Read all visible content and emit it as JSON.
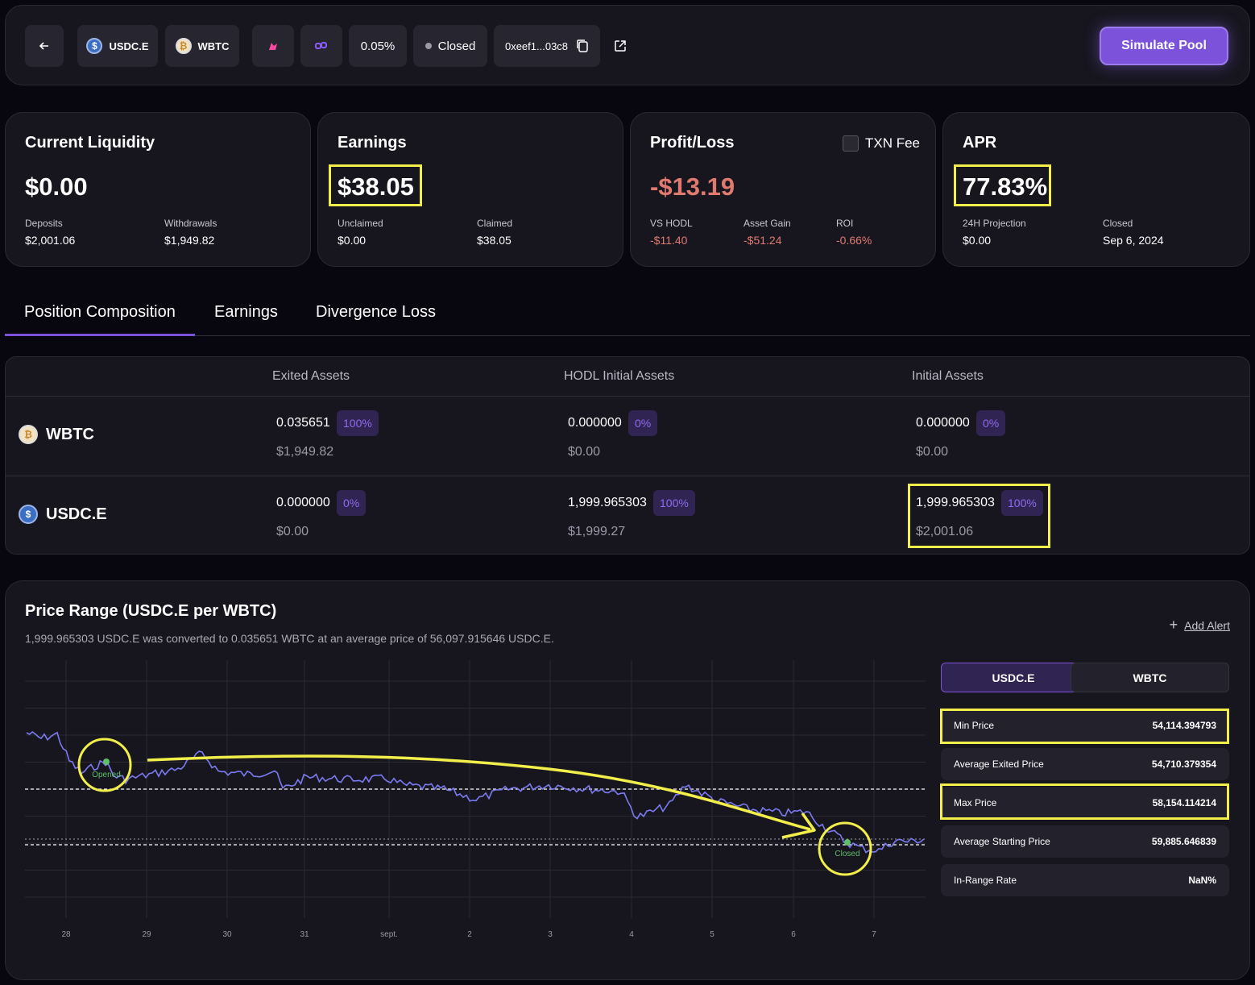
{
  "topbar": {
    "back_icon": "arrow-left-icon",
    "token_a": "USDC.E",
    "token_b": "WBTC",
    "fee": "0.05%",
    "status": "Closed",
    "address": "0xeef1...03c8",
    "simulate_label": "Simulate Pool"
  },
  "stats": {
    "liquidity": {
      "title": "Current Liquidity",
      "value": "$0.00",
      "l1": "Deposits",
      "v1": "$2,001.06",
      "l2": "Withdrawals",
      "v2": "$1,949.82"
    },
    "earnings": {
      "title": "Earnings",
      "value": "$38.05",
      "l1": "Unclaimed",
      "v1": "$0.00",
      "l2": "Claimed",
      "v2": "$38.05"
    },
    "pnl": {
      "title": "Profit/Loss",
      "txn_label": "TXN Fee",
      "value": "-$13.19",
      "l1": "VS HODL",
      "v1": "-$11.40",
      "l2": "Asset Gain",
      "v2": "-$51.24",
      "l3": "ROI",
      "v3": "-0.66%"
    },
    "apr": {
      "title": "APR",
      "value": "77.83%",
      "l1": "24H Projection",
      "v1": "$0.00",
      "l2": "Closed",
      "v2": "Sep 6, 2024"
    }
  },
  "tabs": [
    "Position Composition",
    "Earnings",
    "Divergence Loss"
  ],
  "table": {
    "headers": [
      "Exited Assets",
      "HODL Initial Assets",
      "Initial Assets"
    ],
    "rows": [
      {
        "asset": "WBTC",
        "cells": [
          {
            "amount": "0.035651",
            "pct": "100%",
            "usd": "$1,949.82"
          },
          {
            "amount": "0.000000",
            "pct": "0%",
            "usd": "$0.00"
          },
          {
            "amount": "0.000000",
            "pct": "0%",
            "usd": "$0.00"
          }
        ]
      },
      {
        "asset": "USDC.E",
        "cells": [
          {
            "amount": "0.000000",
            "pct": "0%",
            "usd": "$0.00"
          },
          {
            "amount": "1,999.965303",
            "pct": "100%",
            "usd": "$1,999.27"
          },
          {
            "amount": "1,999.965303",
            "pct": "100%",
            "usd": "$2,001.06"
          }
        ]
      }
    ]
  },
  "price_range": {
    "title": "Price Range (USDC.E per WBTC)",
    "description": "1,999.965303 USDC.E was converted to 0.035651 WBTC at an average price of 56,097.915646 USDC.E.",
    "add_alert": "Add Alert",
    "toggle": [
      "USDC.E",
      "WBTC"
    ],
    "x_ticks": [
      "28",
      "29",
      "30",
      "31",
      "sept.",
      "2",
      "3",
      "4",
      "5",
      "6",
      "7"
    ],
    "opened_label": "Opened",
    "closed_label": "Closed",
    "stats": [
      {
        "label": "Min Price",
        "value": "54,114.394793"
      },
      {
        "label": "Average Exited Price",
        "value": "54,710.379354"
      },
      {
        "label": "Max Price",
        "value": "58,154.114214"
      },
      {
        "label": "Average Starting Price",
        "value": "59,885.646839"
      },
      {
        "label": "In-Range Rate",
        "value": "NaN%"
      }
    ]
  },
  "colors": {
    "accent": "#7b52d9",
    "highlight": "#f2ee4a",
    "negative": "#e07a6f",
    "line": "#7b7bf0"
  }
}
